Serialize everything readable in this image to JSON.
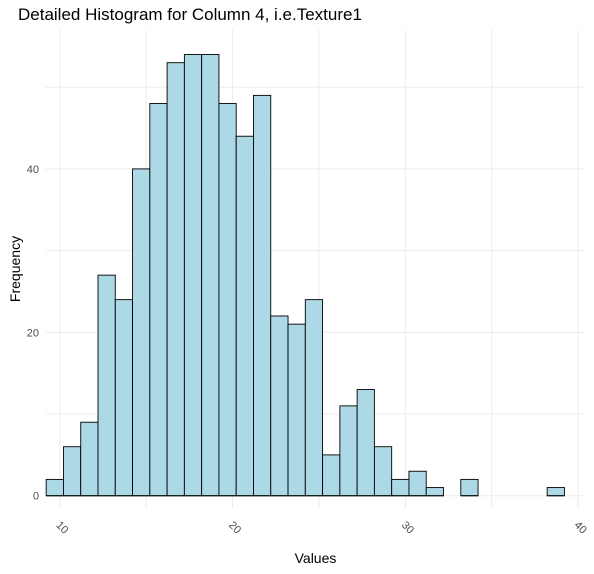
{
  "chart_data": {
    "type": "bar",
    "title": "Detailed Histogram for Column 4, i.e.Texture1",
    "xlabel": "Values",
    "ylabel": "Frequency",
    "xlim": [
      9.2,
      40.4
    ],
    "ylim": [
      -1.5,
      57
    ],
    "x_ticks": [
      10,
      20,
      30,
      40
    ],
    "y_ticks": [
      0,
      20,
      40
    ],
    "bin_width": 1.0,
    "first_bin_center": 9.71,
    "values": [
      2,
      6,
      9,
      27,
      24,
      40,
      48,
      53,
      54,
      54,
      48,
      44,
      49,
      22,
      21,
      24,
      5,
      11,
      13,
      6,
      2,
      3,
      1,
      0,
      2,
      0,
      0,
      0,
      0,
      1
    ],
    "bar_fill": "#add8e6",
    "bar_stroke": "#000000",
    "grid": true,
    "grid_color": "#ebebeb"
  }
}
